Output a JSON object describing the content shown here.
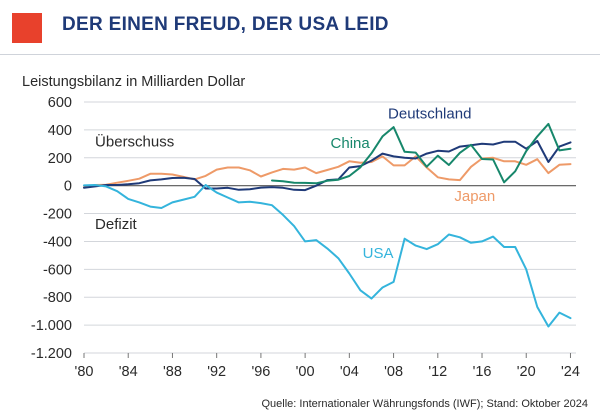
{
  "header": {
    "title": "DER EINEN FREUD, DER USA LEID",
    "accent_color": "#e8412c"
  },
  "chart_data": {
    "type": "line",
    "title": "DER EINEN FREUD, DER USA LEID",
    "ylabel": "Leistungsbilanz in Milliarden Dollar",
    "xlabel": "",
    "ylim": [
      -1200,
      600
    ],
    "xlim": [
      1980,
      2024.5
    ],
    "y_ticks": [
      600,
      400,
      200,
      0,
      -200,
      -400,
      -600,
      -800,
      -1000,
      -1200
    ],
    "y_tick_labels": [
      "600",
      "400",
      "200",
      "0",
      "-200",
      "-400",
      "-600",
      "-800",
      "-1.000",
      "-1.200"
    ],
    "x_ticks": [
      1980,
      1984,
      1988,
      1992,
      1996,
      2000,
      2004,
      2008,
      2012,
      2016,
      2020,
      2024
    ],
    "x_tick_labels": [
      "'80",
      "'84",
      "'88",
      "'92",
      "'96",
      "'00",
      "'04",
      "'08",
      "'12",
      "'16",
      "'20",
      "'24"
    ],
    "annotations": [
      {
        "text": "Überschuss",
        "x": 1981,
        "y": 280
      },
      {
        "text": "Defizit",
        "x": 1981,
        "y": -310
      }
    ],
    "source": "Quelle: Internationaler Währungsfonds (IWF); Stand: Oktober 2024",
    "series": [
      {
        "name": "Japan",
        "color": "#ee9a68",
        "label_x": 2013.5,
        "label_y": -110,
        "x": [
          1980,
          1981,
          1982,
          1983,
          1984,
          1985,
          1986,
          1987,
          1988,
          1989,
          1990,
          1991,
          1992,
          1993,
          1994,
          1995,
          1996,
          1997,
          1998,
          1999,
          2000,
          2001,
          2002,
          2003,
          2004,
          2005,
          2006,
          2007,
          2008,
          2009,
          2010,
          2011,
          2012,
          2013,
          2014,
          2015,
          2016,
          2017,
          2018,
          2019,
          2020,
          2021,
          2022,
          2023,
          2024
        ],
        "values": [
          -10,
          5,
          7,
          21,
          35,
          50,
          85,
          85,
          80,
          63,
          45,
          70,
          115,
          130,
          130,
          110,
          66,
          95,
          120,
          115,
          130,
          90,
          112,
          135,
          175,
          165,
          170,
          210,
          145,
          145,
          210,
          130,
          60,
          45,
          40,
          135,
          195,
          200,
          175,
          175,
          150,
          190,
          90,
          150,
          155
        ]
      },
      {
        "name": "Deutschland",
        "color": "#1f3a78",
        "label_x": 2007.5,
        "label_y": 480,
        "x": [
          1980,
          1981,
          1982,
          1983,
          1984,
          1985,
          1986,
          1987,
          1988,
          1989,
          1990,
          1991,
          1992,
          1993,
          1994,
          1995,
          1996,
          1997,
          1998,
          1999,
          2000,
          2001,
          2002,
          2003,
          2004,
          2005,
          2006,
          2007,
          2008,
          2009,
          2010,
          2011,
          2012,
          2013,
          2014,
          2015,
          2016,
          2017,
          2018,
          2019,
          2020,
          2021,
          2022,
          2023,
          2024
        ],
        "values": [
          -15,
          -5,
          5,
          5,
          10,
          18,
          38,
          45,
          55,
          57,
          48,
          -20,
          -20,
          -15,
          -30,
          -25,
          -14,
          -10,
          -15,
          -30,
          -32,
          0,
          40,
          45,
          130,
          140,
          180,
          230,
          210,
          200,
          195,
          230,
          250,
          245,
          280,
          290,
          300,
          295,
          315,
          315,
          265,
          320,
          170,
          280,
          310
        ]
      },
      {
        "name": "China",
        "color": "#17876b",
        "label_x": 2002.3,
        "label_y": 270,
        "x": [
          1997,
          1998,
          1999,
          2000,
          2001,
          2002,
          2003,
          2004,
          2005,
          2006,
          2007,
          2008,
          2009,
          2010,
          2011,
          2012,
          2013,
          2014,
          2015,
          2016,
          2017,
          2018,
          2019,
          2020,
          2021,
          2022,
          2023,
          2024
        ],
        "values": [
          37,
          31,
          21,
          20,
          17,
          35,
          43,
          69,
          132,
          232,
          353,
          420,
          243,
          237,
          136,
          215,
          148,
          236,
          293,
          191,
          188,
          24,
          103,
          248,
          353,
          443,
          253,
          265
        ]
      },
      {
        "name": "USA",
        "color": "#34b4dc",
        "label_x": 2005.2,
        "label_y": -520,
        "x": [
          1980,
          1981,
          1982,
          1983,
          1984,
          1985,
          1986,
          1987,
          1988,
          1989,
          1990,
          1991,
          1992,
          1993,
          1994,
          1995,
          1996,
          1997,
          1998,
          1999,
          2000,
          2001,
          2002,
          2003,
          2004,
          2005,
          2006,
          2007,
          2008,
          2009,
          2010,
          2011,
          2012,
          2013,
          2014,
          2015,
          2016,
          2017,
          2018,
          2019,
          2020,
          2021,
          2022,
          2023,
          2024
        ],
        "values": [
          2,
          5,
          -5,
          -40,
          -95,
          -120,
          -150,
          -160,
          -120,
          -100,
          -80,
          5,
          -50,
          -85,
          -120,
          -115,
          -125,
          -140,
          -210,
          -290,
          -400,
          -390,
          -450,
          -520,
          -630,
          -750,
          -810,
          -730,
          -690,
          -380,
          -430,
          -455,
          -420,
          -350,
          -370,
          -410,
          -400,
          -365,
          -440,
          -440,
          -600,
          -870,
          -1010,
          -910,
          -950
        ]
      }
    ]
  }
}
